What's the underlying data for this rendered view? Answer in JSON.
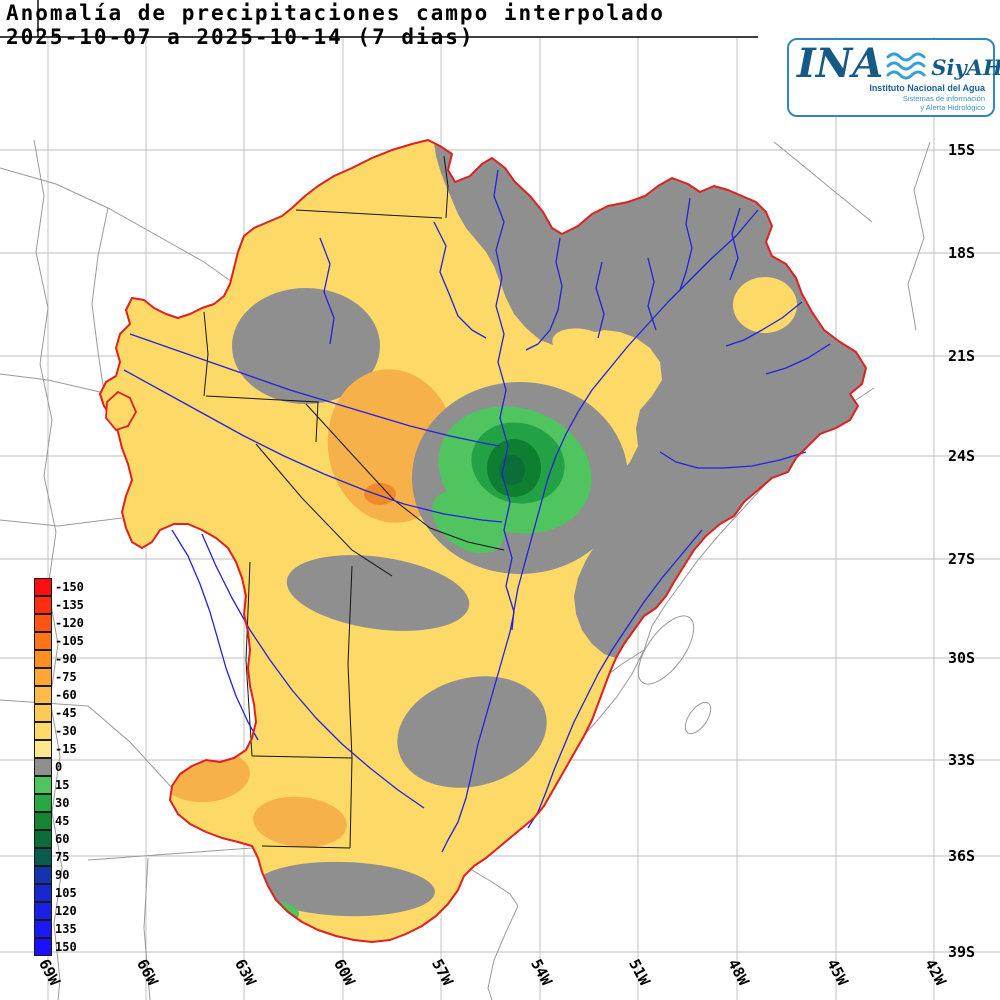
{
  "title": {
    "line1": "Anomalía de precipitaciones campo interpolado",
    "line2": "2025-10-07 a 2025-10-14 (7 dias)"
  },
  "logo": {
    "ina": "INA",
    "siyah": "SiyAH",
    "subtitle1": "Instituto Nacional del Agua",
    "subtitle2": "Sistemas de información",
    "subtitle3": "y Alerta Hidrológico"
  },
  "legend": {
    "entries": [
      {
        "label": "-150",
        "color": "#f90f0f"
      },
      {
        "label": "-135",
        "color": "#fa2d10"
      },
      {
        "label": "-120",
        "color": "#fb5414"
      },
      {
        "label": "-105",
        "color": "#fb7418"
      },
      {
        "label": "-90",
        "color": "#fc8f20"
      },
      {
        "label": "-75",
        "color": "#fca836"
      },
      {
        "label": "-60",
        "color": "#fdbb4a"
      },
      {
        "label": "-45",
        "color": "#fdca58"
      },
      {
        "label": "-30",
        "color": "#fdd968"
      },
      {
        "label": "-15",
        "color": "#fee88c"
      },
      {
        "label": "0",
        "color": "#8f8f8f"
      },
      {
        "label": "15",
        "color": "#4fc45f"
      },
      {
        "label": "30",
        "color": "#28a845"
      },
      {
        "label": "45",
        "color": "#128634"
      },
      {
        "label": "60",
        "color": "#0b6e38"
      },
      {
        "label": "75",
        "color": "#0b5a4e"
      },
      {
        "label": "90",
        "color": "#1533ae"
      },
      {
        "label": "105",
        "color": "#1729cc"
      },
      {
        "label": "120",
        "color": "#1921e4"
      },
      {
        "label": "135",
        "color": "#1a19f2"
      },
      {
        "label": "150",
        "color": "#1b10fb"
      }
    ]
  },
  "axes": {
    "latitude_labels": [
      "15S",
      "18S",
      "21S",
      "24S",
      "27S",
      "30S",
      "33S",
      "36S",
      "39S"
    ],
    "longitude_labels": [
      "69W",
      "66W",
      "63W",
      "60W",
      "57W",
      "54W",
      "51W",
      "48W",
      "45W",
      "42W"
    ]
  },
  "map_palette": {
    "yellow": "#fdd968",
    "pale_yellow": "#fee88c",
    "orange": "#f7b14a",
    "deep_orange": "#f08a28",
    "gray": "#8f8f8f",
    "green_light": "#4fc45f",
    "green_mid": "#22a244",
    "green_dark": "#0e7e31",
    "green_darker": "#0b6e38",
    "river_blue": "#2222dd",
    "basin_outline_red": "#e02020",
    "border_black": "#141414",
    "context_gray": "#9a9a9a",
    "grid_gray": "#bdbdbd"
  }
}
